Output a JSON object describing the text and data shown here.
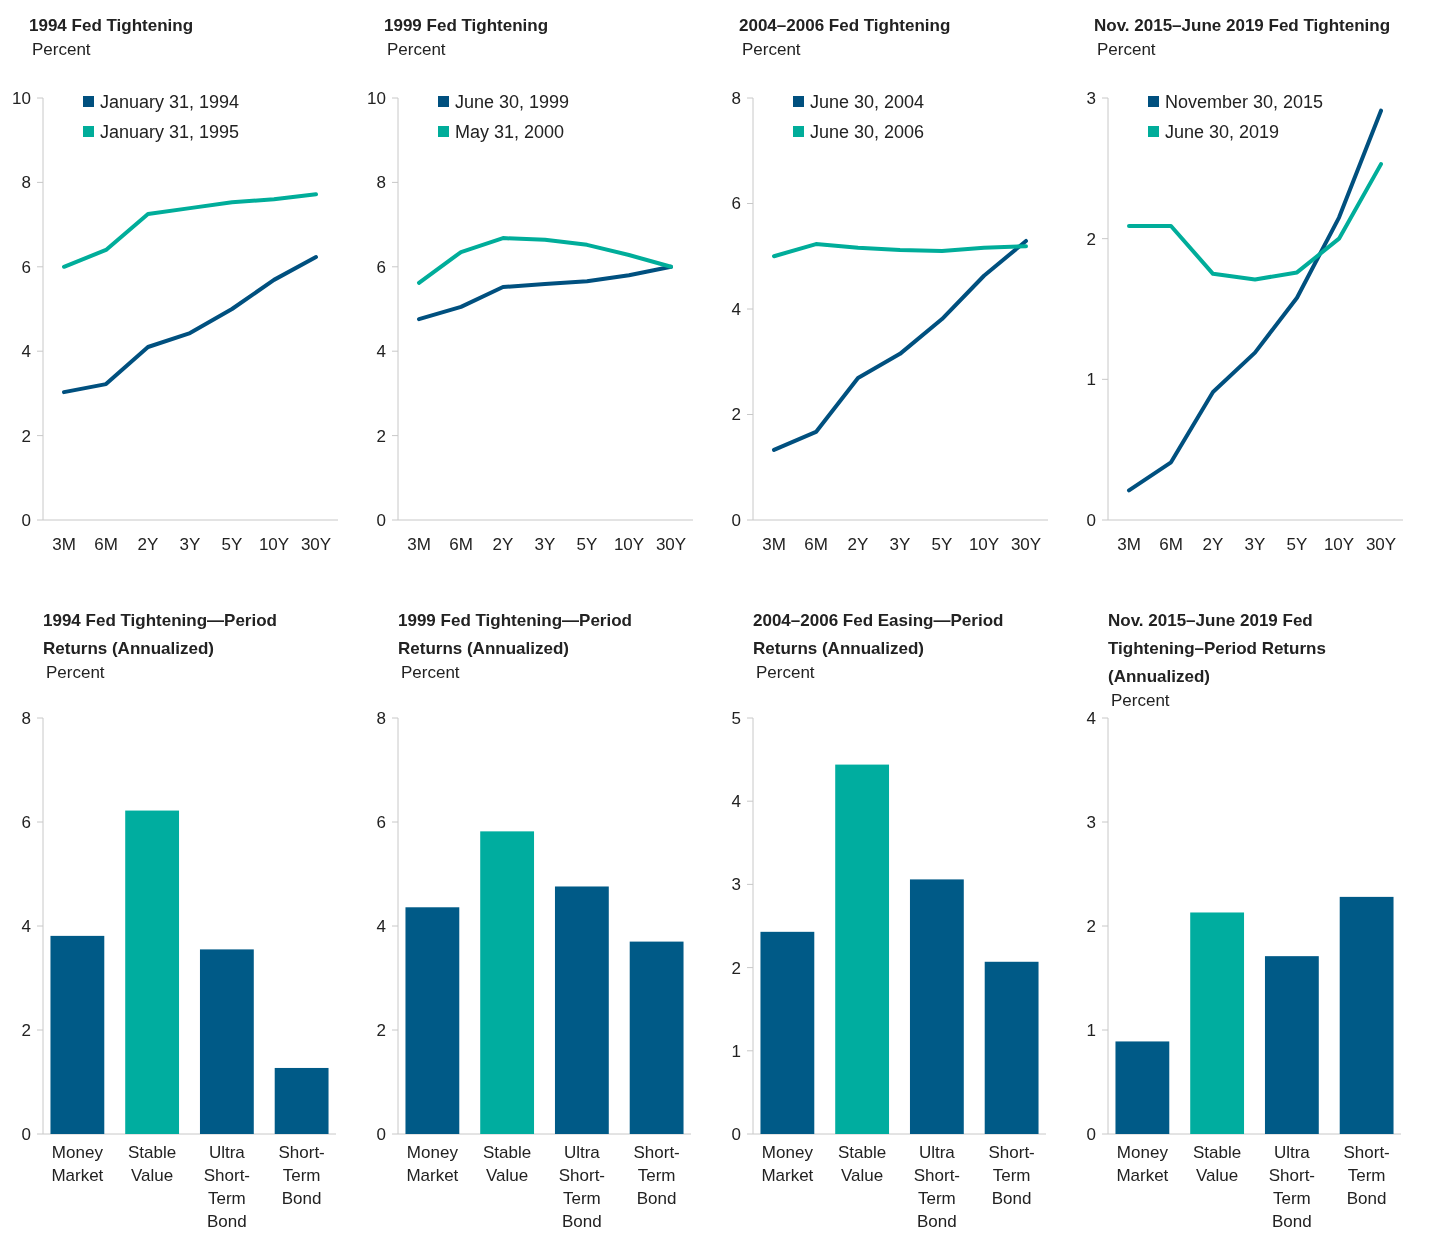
{
  "chart_data": [
    {
      "type": "line",
      "title": "1994 Fed Tightening",
      "subtitle": "Percent",
      "categories": [
        "3M",
        "6M",
        "2Y",
        "3Y",
        "5Y",
        "10Y",
        "30Y"
      ],
      "ylim": [
        0,
        10
      ],
      "yticks": [
        0,
        2,
        4,
        6,
        8,
        10
      ],
      "legend": "top left",
      "series": [
        {
          "name": "January 31, 1994",
          "color": "#00507f",
          "values": [
            3.03,
            3.22,
            4.1,
            4.43,
            5.0,
            5.69,
            6.23
          ]
        },
        {
          "name": "January 31, 1995",
          "color": "#00ad9a",
          "values": [
            6.0,
            6.4,
            7.25,
            7.39,
            7.53,
            7.6,
            7.72
          ]
        }
      ]
    },
    {
      "type": "line",
      "title": "1999 Fed Tightening",
      "subtitle": "Percent",
      "categories": [
        "3M",
        "6M",
        "2Y",
        "3Y",
        "5Y",
        "10Y",
        "30Y"
      ],
      "ylim": [
        0,
        10
      ],
      "yticks": [
        0,
        2,
        4,
        6,
        8,
        10
      ],
      "legend": "top left",
      "series": [
        {
          "name": "June 30, 1999",
          "color": "#00507f",
          "values": [
            4.76,
            5.05,
            5.52,
            5.59,
            5.66,
            5.8,
            6.0
          ]
        },
        {
          "name": "May 31, 2000",
          "color": "#00ad9a",
          "values": [
            5.62,
            6.35,
            6.68,
            6.64,
            6.52,
            6.28,
            6.0
          ]
        }
      ]
    },
    {
      "type": "line",
      "title": "2004–2006 Fed Tightening",
      "subtitle": "Percent",
      "categories": [
        "3M",
        "6M",
        "2Y",
        "3Y",
        "5Y",
        "10Y",
        "30Y"
      ],
      "ylim": [
        0,
        8
      ],
      "yticks": [
        0,
        2,
        4,
        6,
        8
      ],
      "legend": "top left",
      "series": [
        {
          "name": "June 30, 2004",
          "color": "#00507f",
          "values": [
            1.33,
            1.67,
            2.69,
            3.15,
            3.81,
            4.63,
            5.29
          ]
        },
        {
          "name": "June 30, 2006",
          "color": "#00ad9a",
          "values": [
            5.0,
            5.23,
            5.16,
            5.12,
            5.1,
            5.16,
            5.19
          ]
        }
      ]
    },
    {
      "type": "line",
      "title": "Nov. 2015–June 2019 Fed Tightening",
      "subtitle": "Percent",
      "categories": [
        "3M",
        "6M",
        "2Y",
        "3Y",
        "5Y",
        "10Y",
        "30Y"
      ],
      "ylim": [
        0,
        3
      ],
      "yticks": [
        0,
        1,
        2,
        3
      ],
      "legend": "top left",
      "series": [
        {
          "name": "November 30, 2015",
          "color": "#00507f",
          "values": [
            0.21,
            0.41,
            0.91,
            1.19,
            1.58,
            2.15,
            2.91
          ]
        },
        {
          "name": "June 30, 2019",
          "color": "#00ad9a",
          "values": [
            2.09,
            2.09,
            1.75,
            1.71,
            1.76,
            2.0,
            2.53
          ]
        }
      ]
    },
    {
      "type": "bar",
      "title": "1994 Fed Tightening—Period Returns (Annualized)",
      "subtitle": "Percent",
      "categories": [
        "Money Market",
        "Stable Value",
        "Ultra Short-Term Bond",
        "Short-Term Bond"
      ],
      "values": [
        3.81,
        6.22,
        3.55,
        1.27
      ],
      "colors": [
        "#005a87",
        "#00ad9f",
        "#005a87",
        "#005a87"
      ],
      "ylim": [
        0,
        8
      ],
      "yticks": [
        0,
        2,
        4,
        6,
        8
      ]
    },
    {
      "type": "bar",
      "title": "1999 Fed Tightening—Period Returns (Annualized)",
      "subtitle": "Percent",
      "categories": [
        "Money Market",
        "Stable Value",
        "Ultra Short-Term Bond",
        "Short-Term Bond"
      ],
      "values": [
        4.36,
        5.82,
        4.76,
        3.7
      ],
      "colors": [
        "#005a87",
        "#00ad9f",
        "#005a87",
        "#005a87"
      ],
      "ylim": [
        0,
        8
      ],
      "yticks": [
        0,
        2,
        4,
        6,
        8
      ]
    },
    {
      "type": "bar",
      "title": "2004–2006 Fed Easing—Period Returns (Annualized)",
      "subtitle": "Percent",
      "categories": [
        "Money Market",
        "Stable Value",
        "Ultra Short-Term Bond",
        "Short-Term Bond"
      ],
      "values": [
        2.43,
        4.44,
        3.06,
        2.07
      ],
      "colors": [
        "#005a87",
        "#00ad9f",
        "#005a87",
        "#005a87"
      ],
      "ylim": [
        0,
        5
      ],
      "yticks": [
        0,
        1,
        2,
        3,
        4,
        5
      ]
    },
    {
      "type": "bar",
      "title": "Nov. 2015–June 2019 Fed Tightening–Period Returns (Annualized)",
      "subtitle": "Percent",
      "categories": [
        "Money Market",
        "Stable Value",
        "Ultra Short-Term Bond",
        "Short-Term Bond"
      ],
      "values": [
        0.89,
        2.13,
        1.71,
        2.28
      ],
      "colors": [
        "#005a87",
        "#00ad9f",
        "#005a87",
        "#005a87"
      ],
      "ylim": [
        0,
        4
      ],
      "yticks": [
        0,
        1,
        2,
        3,
        4
      ]
    }
  ]
}
